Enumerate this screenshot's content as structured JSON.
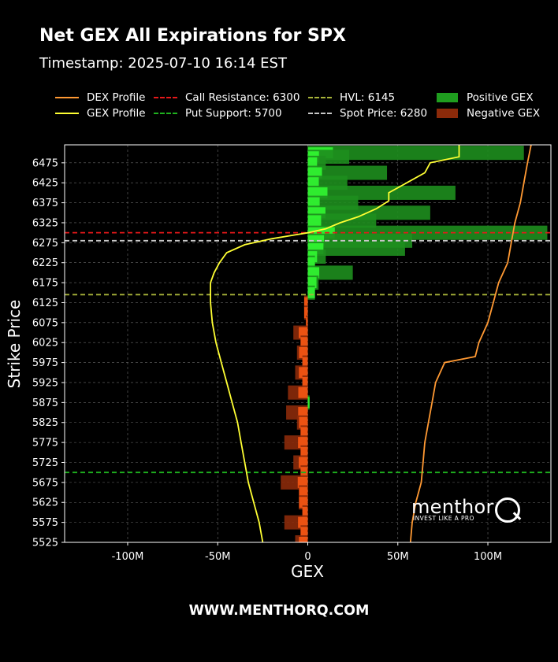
{
  "header": {
    "title": "Net GEX All Expirations for SPX",
    "subtitle": "Timestamp: 2025-07-10 16:14 EST"
  },
  "legend": [
    {
      "label": "DEX Profile",
      "kind": "line",
      "color": "#ff9933",
      "dash": "none"
    },
    {
      "label": "GEX Profile",
      "kind": "line",
      "color": "#ffff33",
      "dash": "none"
    },
    {
      "label": "Call Resistance: 6300",
      "kind": "line",
      "color": "#e6191a",
      "dash": "dashed"
    },
    {
      "label": "Put Support: 5700",
      "kind": "line",
      "color": "#1fb21f",
      "dash": "dashed"
    },
    {
      "label": "HVL: 6145",
      "kind": "line",
      "color": "#a8b43a",
      "dash": "dashed"
    },
    {
      "label": "Spot Price: 6280",
      "kind": "line",
      "color": "#c8c8c8",
      "dash": "dashed"
    },
    {
      "label": "Positive GEX",
      "kind": "patch",
      "color": "#1f9d1f"
    },
    {
      "label": "Negative GEX",
      "kind": "patch",
      "color": "#8b2a0a"
    }
  ],
  "footer": {
    "text": "WWW.MENTHORQ.COM"
  },
  "brand": {
    "name": "menthor",
    "tagline": "INVEST LIKE A PRO"
  },
  "chart_data": {
    "type": "bar",
    "orientation": "horizontal",
    "xlabel": "GEX",
    "ylabel": "Strike Price",
    "xlim": [
      -135000000,
      135000000
    ],
    "ylim": [
      5525,
      6520
    ],
    "xticks": [
      -100000000,
      -50000000,
      0,
      50000000,
      100000000
    ],
    "xtick_labels": [
      "-100M",
      "-50M",
      "0",
      "50M",
      "100M"
    ],
    "yticks": [
      5525,
      5575,
      5625,
      5675,
      5725,
      5775,
      5825,
      5875,
      5925,
      5975,
      6025,
      6075,
      6125,
      6175,
      6225,
      6275,
      6325,
      6375,
      6425,
      6475
    ],
    "grid": true,
    "levels": {
      "call_resistance": 6300,
      "put_support": 5700,
      "hvl": 6145,
      "spot_price": 6280
    },
    "gex_bars": [
      {
        "strike": 6500,
        "value": 120000000
      },
      {
        "strike": 6490,
        "value": 23000000
      },
      {
        "strike": 6475,
        "value": 10000000
      },
      {
        "strike": 6450,
        "value": 44000000
      },
      {
        "strike": 6425,
        "value": 22000000
      },
      {
        "strike": 6400,
        "value": 82000000
      },
      {
        "strike": 6375,
        "value": 28000000
      },
      {
        "strike": 6350,
        "value": 68000000
      },
      {
        "strike": 6330,
        "value": 38000000
      },
      {
        "strike": 6300,
        "value": 133000000
      },
      {
        "strike": 6280,
        "value": 58000000
      },
      {
        "strike": 6260,
        "value": 54000000
      },
      {
        "strike": 6240,
        "value": 10000000
      },
      {
        "strike": 6225,
        "value": 4000000
      },
      {
        "strike": 6200,
        "value": 25000000
      },
      {
        "strike": 6175,
        "value": 6000000
      },
      {
        "strike": 6150,
        "value": 4000000
      },
      {
        "strike": 6125,
        "value": -2000000
      },
      {
        "strike": 6100,
        "value": -2000000
      },
      {
        "strike": 6075,
        "value": -1000000
      },
      {
        "strike": 6050,
        "value": -8000000
      },
      {
        "strike": 6025,
        "value": -4000000
      },
      {
        "strike": 6000,
        "value": -6000000
      },
      {
        "strike": 5975,
        "value": -3000000
      },
      {
        "strike": 5950,
        "value": -7000000
      },
      {
        "strike": 5925,
        "value": -3000000
      },
      {
        "strike": 5900,
        "value": -11000000
      },
      {
        "strike": 5875,
        "value": 1000000
      },
      {
        "strike": 5850,
        "value": -12000000
      },
      {
        "strike": 5825,
        "value": -6000000
      },
      {
        "strike": 5800,
        "value": -4000000
      },
      {
        "strike": 5775,
        "value": -13000000
      },
      {
        "strike": 5750,
        "value": -4000000
      },
      {
        "strike": 5725,
        "value": -8000000
      },
      {
        "strike": 5700,
        "value": -4000000
      },
      {
        "strike": 5675,
        "value": -15000000
      },
      {
        "strike": 5650,
        "value": -5000000
      },
      {
        "strike": 5625,
        "value": -5000000
      },
      {
        "strike": 5600,
        "value": -3000000
      },
      {
        "strike": 5575,
        "value": -13000000
      },
      {
        "strike": 5550,
        "value": -4000000
      },
      {
        "strike": 5525,
        "value": -7000000
      }
    ],
    "gex_profile": [
      {
        "strike": 5525,
        "value": -25000000
      },
      {
        "strike": 5575,
        "value": -27000000
      },
      {
        "strike": 5625,
        "value": -30000000
      },
      {
        "strike": 5675,
        "value": -33000000
      },
      {
        "strike": 5725,
        "value": -35000000
      },
      {
        "strike": 5775,
        "value": -37000000
      },
      {
        "strike": 5825,
        "value": -39000000
      },
      {
        "strike": 5875,
        "value": -42000000
      },
      {
        "strike": 5925,
        "value": -45000000
      },
      {
        "strike": 5975,
        "value": -48000000
      },
      {
        "strike": 6025,
        "value": -51000000
      },
      {
        "strike": 6075,
        "value": -53000000
      },
      {
        "strike": 6125,
        "value": -54000000
      },
      {
        "strike": 6175,
        "value": -54000000
      },
      {
        "strike": 6200,
        "value": -52000000
      },
      {
        "strike": 6225,
        "value": -49000000
      },
      {
        "strike": 6250,
        "value": -45000000
      },
      {
        "strike": 6270,
        "value": -35000000
      },
      {
        "strike": 6285,
        "value": -20000000
      },
      {
        "strike": 6300,
        "value": 0
      },
      {
        "strike": 6310,
        "value": 10000000
      },
      {
        "strike": 6325,
        "value": 18000000
      },
      {
        "strike": 6340,
        "value": 28000000
      },
      {
        "strike": 6360,
        "value": 38000000
      },
      {
        "strike": 6380,
        "value": 45000000
      },
      {
        "strike": 6400,
        "value": 45000000
      },
      {
        "strike": 6425,
        "value": 55000000
      },
      {
        "strike": 6450,
        "value": 65000000
      },
      {
        "strike": 6475,
        "value": 68000000
      },
      {
        "strike": 6490,
        "value": 84000000
      },
      {
        "strike": 6520,
        "value": 84000000
      }
    ],
    "dex_profile": [
      {
        "strike": 5525,
        "value": 57000000
      },
      {
        "strike": 5575,
        "value": 58000000
      },
      {
        "strike": 5625,
        "value": 60000000
      },
      {
        "strike": 5675,
        "value": 63000000
      },
      {
        "strike": 5725,
        "value": 64000000
      },
      {
        "strike": 5775,
        "value": 65000000
      },
      {
        "strike": 5825,
        "value": 67000000
      },
      {
        "strike": 5875,
        "value": 69000000
      },
      {
        "strike": 5925,
        "value": 71000000
      },
      {
        "strike": 5975,
        "value": 76000000
      },
      {
        "strike": 5990,
        "value": 93000000
      },
      {
        "strike": 6025,
        "value": 95000000
      },
      {
        "strike": 6075,
        "value": 100000000
      },
      {
        "strike": 6125,
        "value": 103000000
      },
      {
        "strike": 6175,
        "value": 106000000
      },
      {
        "strike": 6225,
        "value": 111000000
      },
      {
        "strike": 6275,
        "value": 113000000
      },
      {
        "strike": 6325,
        "value": 115000000
      },
      {
        "strike": 6375,
        "value": 118000000
      },
      {
        "strike": 6425,
        "value": 120000000
      },
      {
        "strike": 6475,
        "value": 122000000
      },
      {
        "strike": 6520,
        "value": 124000000
      }
    ]
  }
}
